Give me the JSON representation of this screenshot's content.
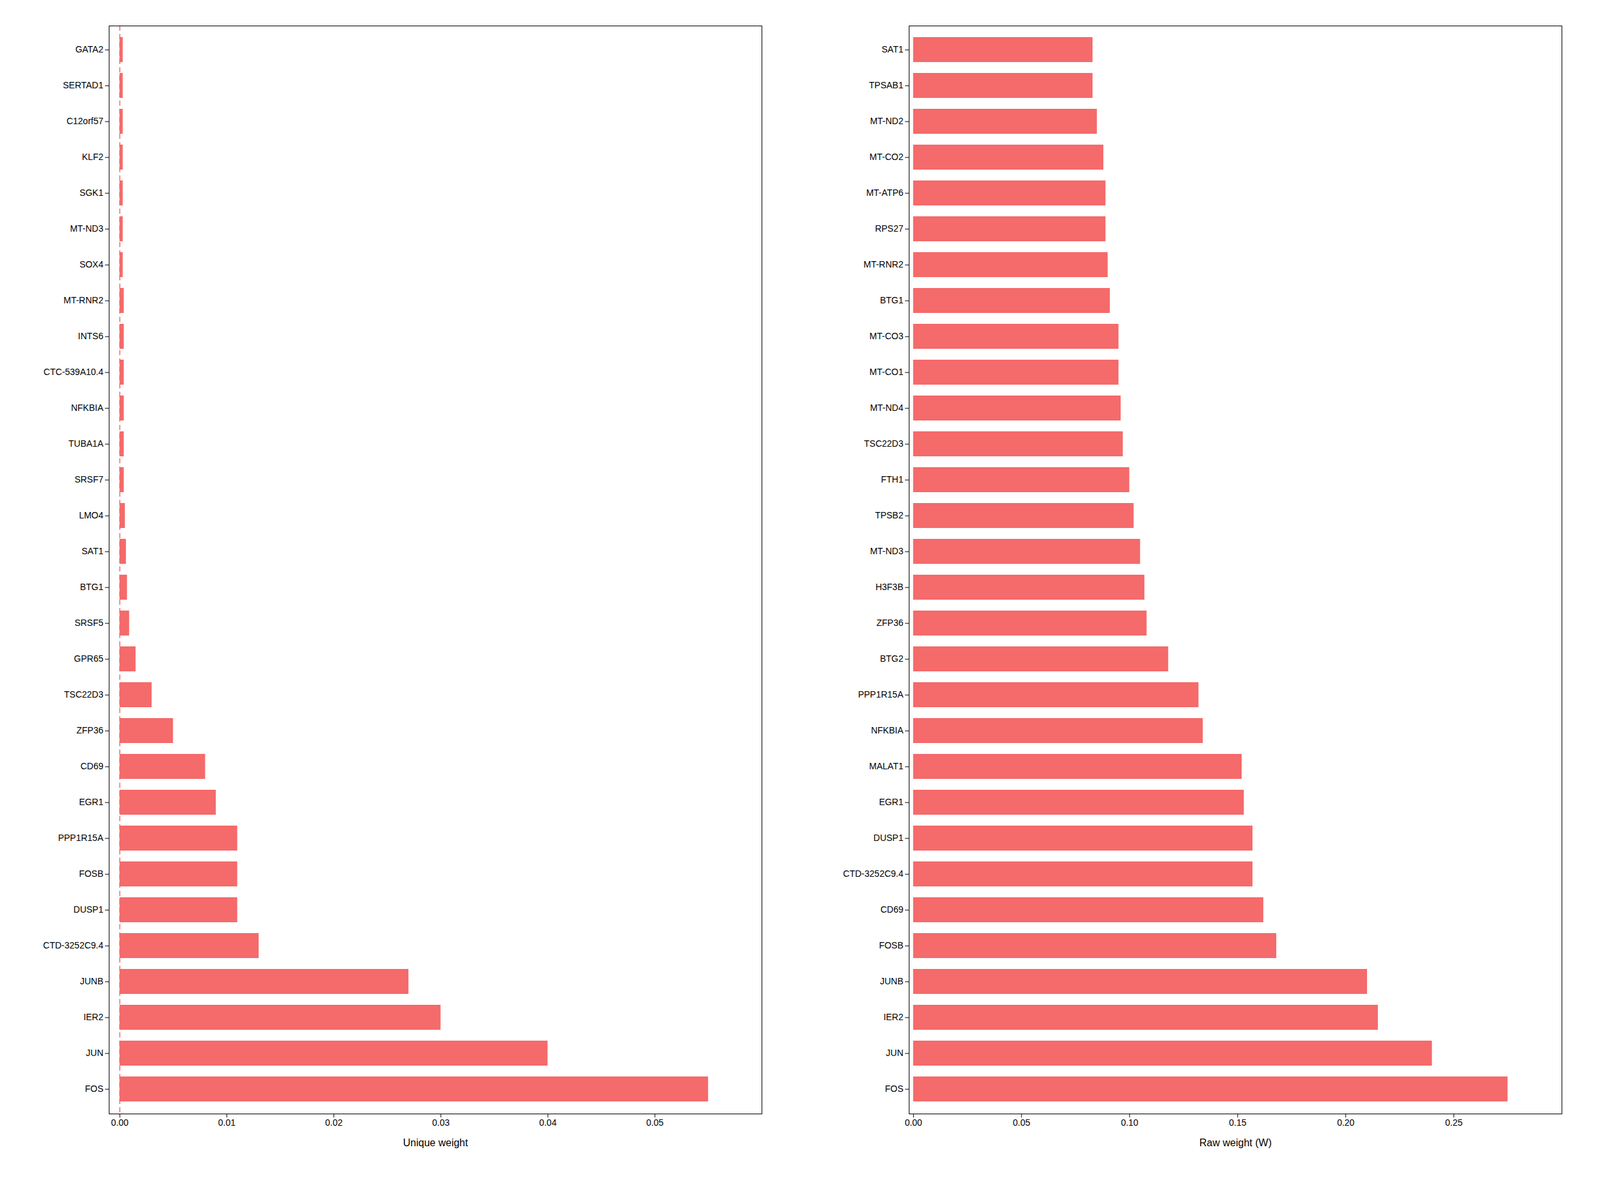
{
  "chart_data": [
    {
      "type": "bar",
      "orientation": "horizontal",
      "categories": [
        "GATA2",
        "SERTAD1",
        "C12orf57",
        "KLF2",
        "SGK1",
        "MT-ND3",
        "SOX4",
        "MT-RNR2",
        "INTS6",
        "CTC-539A10.4",
        "NFKBIA",
        "TUBA1A",
        "SRSF7",
        "LMO4",
        "SAT1",
        "BTG1",
        "SRSF5",
        "GPR65",
        "TSC22D3",
        "ZFP36",
        "CD69",
        "EGR1",
        "PPP1R15A",
        "FOSB",
        "DUSP1",
        "CTD-3252C9.4",
        "JUNB",
        "IER2",
        "JUN",
        "FOS"
      ],
      "values": [
        0.0003,
        0.0003,
        0.0003,
        0.0003,
        0.0003,
        0.0003,
        0.0003,
        0.0004,
        0.0004,
        0.0004,
        0.0004,
        0.0004,
        0.0004,
        0.0005,
        0.0006,
        0.0007,
        0.0009,
        0.0015,
        0.003,
        0.005,
        0.008,
        0.009,
        0.011,
        0.011,
        0.011,
        0.013,
        0.027,
        0.03,
        0.04,
        0.055
      ],
      "color": "#F56A6A",
      "x_label": "Unique weight",
      "xlim": [
        -0.001,
        0.06
      ],
      "xticks": [
        {
          "value": 0,
          "label": "0.00"
        },
        0.01,
        0.02,
        0.03,
        0.04,
        0.05
      ],
      "grid": false,
      "vline": {
        "value": 0,
        "color": "#F56A6A",
        "line_style": "dashed"
      }
    },
    {
      "type": "bar",
      "orientation": "horizontal",
      "categories": [
        "SAT1",
        "TPSAB1",
        "MT-ND2",
        "MT-CO2",
        "MT-ATP6",
        "RPS27",
        "MT-RNR2",
        "BTG1",
        "MT-CO3",
        "MT-CO1",
        "MT-ND4",
        "TSC22D3",
        "FTH1",
        "TPSB2",
        "MT-ND3",
        "H3F3B",
        "ZFP36",
        "BTG2",
        "PPP1R15A",
        "NFKBIA",
        "MALAT1",
        "EGR1",
        "DUSP1",
        "CTD-3252C9.4",
        "CD69",
        "FOSB",
        "JUNB",
        "IER2",
        "JUN",
        "FOS"
      ],
      "values": [
        0.083,
        0.083,
        0.085,
        0.088,
        0.089,
        0.089,
        0.09,
        0.091,
        0.095,
        0.095,
        0.096,
        0.097,
        0.1,
        0.102,
        0.105,
        0.107,
        0.108,
        0.118,
        0.132,
        0.134,
        0.152,
        0.153,
        0.157,
        0.157,
        0.162,
        0.168,
        0.21,
        0.215,
        0.24,
        0.275
      ],
      "color": "#F56A6A",
      "x_label": "Raw weight (W)",
      "xlim": [
        -0.002,
        0.3
      ],
      "xticks": [
        {
          "value": 0,
          "label": "0.00"
        },
        0.05,
        {
          "value": 0.1,
          "label": "0.10"
        },
        0.15,
        {
          "value": 0.2,
          "label": "0.20"
        },
        0.25
      ],
      "grid": false
    }
  ]
}
